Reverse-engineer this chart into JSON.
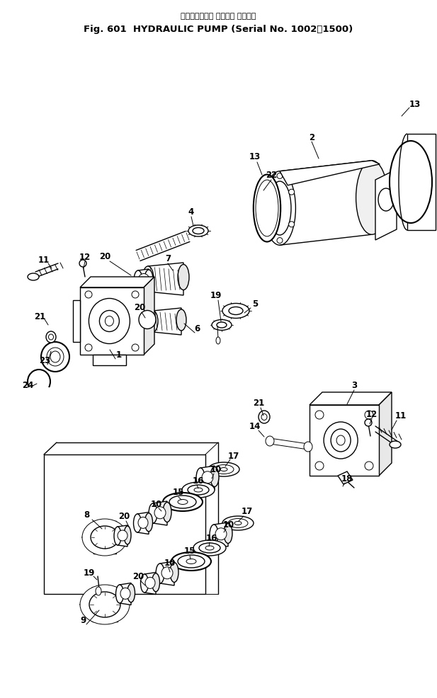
{
  "title_line1": "ハイドロリック ポンプ（ 通用号機",
  "title_line2": "Fig. 601  HYDRAULIC PUMP (Serial No. 1002～1500)",
  "bg_color": "#ffffff",
  "fg_color": "#000000",
  "fig_width": 6.17,
  "fig_height": 9.87,
  "dpi": 100
}
